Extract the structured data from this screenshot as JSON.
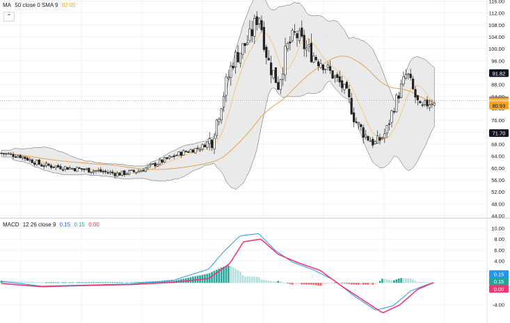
{
  "legend_price": {
    "name": "MA",
    "params": "50 close 0 SMA 9",
    "value": "82.05",
    "value_color": "#f7a21b"
  },
  "legend_macd": {
    "name": "MACD",
    "params": "12 26 close 9",
    "v1": "0.15",
    "v2": "0.15",
    "v3": "0.00",
    "v1_color": "#2962ff",
    "v2_color": "#26a69a",
    "v3_color": "#f23645"
  },
  "collapse_icon": "chevron-up-icon",
  "colors": {
    "up": "#26a69a",
    "down": "#ef5350",
    "band_fill": "#e3e3e3",
    "ma_fast": "#f7c67a",
    "ma_slow": "#e8a04f",
    "macd_line": "#2196f3",
    "signal_line": "#f23673"
  },
  "price_axis": {
    "ticks": [
      "116.00",
      "112.00",
      "108.00",
      "104.00",
      "100.00",
      "96.00",
      "92.00",
      "88.00",
      "84.00",
      "80.00",
      "76.00",
      "72.00",
      "68.00",
      "64.00",
      "60.00",
      "56.00",
      "52.00",
      "48.00",
      "44.00"
    ],
    "min": 44,
    "max": 116
  },
  "price_badges": [
    {
      "label": "91.82",
      "value": 91.82,
      "bg": "#131722",
      "fg": "#ffffff"
    },
    {
      "label": "82.68",
      "value": 82.68,
      "bg": "#787b86",
      "fg": "#ffffff"
    },
    {
      "label": "82.26",
      "value": 82.26,
      "bg": "#f7a21b",
      "fg": "#ffffff"
    },
    {
      "label": "81.76",
      "value": 81.76,
      "bg": "#f7c67a",
      "fg": "#131722"
    },
    {
      "label": "80.93",
      "value": 80.93,
      "bg": "#f7a21b",
      "fg": "#131722"
    },
    {
      "label": "71.70",
      "value": 71.7,
      "bg": "#131722",
      "fg": "#ffffff"
    }
  ],
  "macd_axis": {
    "ticks": [
      "10.00",
      "8.00",
      "6.00",
      "4.00",
      "2.00",
      "0.00",
      "-4.00"
    ],
    "min": -5.5,
    "max": 10.5
  },
  "macd_badges": [
    {
      "label": "0.15",
      "value": 1.6,
      "bg": "#2196f3",
      "fg": "#ffffff"
    },
    {
      "label": "0.15",
      "value": 0.25,
      "bg": "#26a69a",
      "fg": "#ffffff"
    },
    {
      "label": "0.00",
      "value": -1.1,
      "bg": "#f23673",
      "fg": "#ffffff"
    }
  ]
}
